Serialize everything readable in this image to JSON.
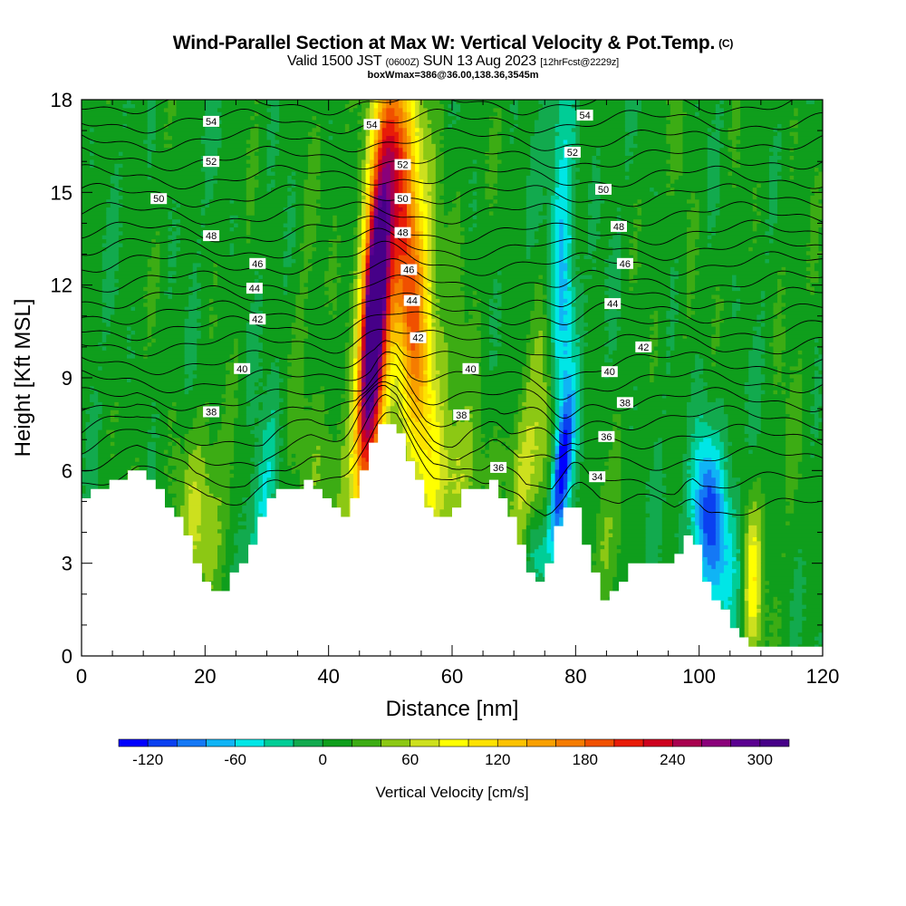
{
  "header": {
    "title": "Wind-Parallel Section at Max W: Vertical Velocity & Pot.Temp.",
    "copyright": "(C)",
    "valid_prefix": "Valid 1500 JST",
    "valid_utc": "(0600Z)",
    "valid_date": "SUN 13 Aug 2023",
    "forecast": "[12hrFcst@2229z]",
    "boxline": "boxWmax=386@36.00,138.36,3545m"
  },
  "chart_data": {
    "type": "heatmap",
    "xlabel": "Distance [nm]",
    "ylabel": "Height [Kft MSL]",
    "xlim": [
      0,
      120
    ],
    "ylim": [
      0,
      18
    ],
    "xticks": [
      0,
      20,
      40,
      60,
      80,
      100,
      120
    ],
    "yticks": [
      0,
      3,
      6,
      9,
      12,
      15,
      18
    ],
    "colorbar": {
      "title": "Vertical Velocity [cm/s]",
      "range": [
        -140,
        320
      ],
      "step": 20,
      "tick_values": [
        -120,
        -60,
        0,
        60,
        120,
        180,
        240,
        300
      ],
      "tick_labels": [
        "-120",
        "-60",
        "0",
        "60",
        "120",
        "180",
        "240",
        "300"
      ],
      "colors": [
        "#0000ff",
        "#0a40f0",
        "#1478f5",
        "#10b4f5",
        "#00e6e6",
        "#00cd96",
        "#12aa4e",
        "#0f9e1c",
        "#3cac14",
        "#8cc814",
        "#cde01e",
        "#ffff00",
        "#fde200",
        "#fbc200",
        "#f8a000",
        "#f57c00",
        "#f05000",
        "#e81c08",
        "#cd001e",
        "#a8004e",
        "#8a007a",
        "#5a0090",
        "#460088"
      ]
    },
    "terrain_profile": {
      "x": [
        0,
        5,
        9,
        12,
        14,
        16,
        17,
        18,
        19,
        20,
        21,
        23,
        24,
        26,
        27,
        28,
        29,
        30,
        31,
        32,
        33,
        34,
        36,
        37,
        38,
        40,
        42,
        43,
        44,
        45,
        46,
        47,
        48,
        49,
        50,
        51,
        52,
        53,
        54,
        55,
        56,
        57,
        58,
        59,
        60,
        61,
        62,
        63,
        64,
        65,
        66,
        67,
        68,
        69,
        70,
        71,
        72,
        73,
        74,
        75,
        76,
        77,
        78,
        79,
        80,
        81,
        82,
        83,
        84,
        85,
        86,
        87,
        88,
        89,
        90,
        92,
        94,
        96,
        98,
        99,
        100,
        101,
        102,
        103,
        104,
        105,
        106,
        107,
        108,
        109,
        110,
        112,
        114,
        116,
        118,
        120
      ],
      "height": [
        5.0,
        5.6,
        6.0,
        5.6,
        5.0,
        4.3,
        3.9,
        3.3,
        2.8,
        2.4,
        2.0,
        2.0,
        2.4,
        2.8,
        3.3,
        3.8,
        4.3,
        4.8,
        5.1,
        5.3,
        5.3,
        5.4,
        5.5,
        5.6,
        5.4,
        5.0,
        4.6,
        4.6,
        5.0,
        5.6,
        6.0,
        6.6,
        7.2,
        7.6,
        7.6,
        7.6,
        7.0,
        6.5,
        6.0,
        5.5,
        5.0,
        4.6,
        4.6,
        4.6,
        4.6,
        4.8,
        5.2,
        5.4,
        5.4,
        5.4,
        5.6,
        5.6,
        5.2,
        4.7,
        4.3,
        3.8,
        3.0,
        2.6,
        2.4,
        2.4,
        3.0,
        3.9,
        4.5,
        5.0,
        4.8,
        4.2,
        3.4,
        2.8,
        2.2,
        1.7,
        2.0,
        2.2,
        2.6,
        2.8,
        3.0,
        3.0,
        3.0,
        3.0,
        4.0,
        4.0,
        3.4,
        2.6,
        2.2,
        1.8,
        1.5,
        1.2,
        0.9,
        0.6,
        0.3,
        0.3,
        0.3,
        0.3,
        0.3,
        0.3,
        0.3,
        0.3
      ]
    },
    "vertical_velocity_features": [
      {
        "x": 47.3,
        "y": 11.0,
        "sx": 1.3,
        "sy": 3.2,
        "tilt": 0.32,
        "value": 300
      },
      {
        "x": 47.5,
        "y": 10.8,
        "sx": 2.4,
        "sy": 5.0,
        "tilt": 0.3,
        "value": 130
      },
      {
        "x": 53.3,
        "y": 12.2,
        "sx": 1.9,
        "sy": 4.2,
        "tilt": -0.3,
        "value": 125
      },
      {
        "x": 54.5,
        "y": 11.0,
        "sx": 3.2,
        "sy": 6.0,
        "tilt": -0.25,
        "value": 55
      },
      {
        "x": 45.0,
        "y": 9.5,
        "sx": 1.4,
        "sy": 2.2,
        "tilt": 0.4,
        "value": -45
      },
      {
        "x": 49.8,
        "y": 16.8,
        "sx": 1.8,
        "sy": 1.8,
        "tilt": 0,
        "value": 60
      },
      {
        "x": 77.5,
        "y": 5.8,
        "sx": 1.0,
        "sy": 1.7,
        "tilt": 0.6,
        "value": -110
      },
      {
        "x": 78.0,
        "y": 9.5,
        "sx": 1.4,
        "sy": 5.0,
        "tilt": 0.08,
        "value": -55
      },
      {
        "x": 77.5,
        "y": 14.0,
        "sx": 1.5,
        "sy": 4.0,
        "tilt": 0,
        "value": -40
      },
      {
        "x": 75.0,
        "y": 8.5,
        "sx": 1.6,
        "sy": 3.0,
        "tilt": 0,
        "value": 35
      },
      {
        "x": 101.0,
        "y": 4.8,
        "sx": 1.7,
        "sy": 1.7,
        "tilt": 0,
        "value": -85
      },
      {
        "x": 101.5,
        "y": 4.5,
        "sx": 3.0,
        "sy": 2.6,
        "tilt": 0,
        "value": -30
      },
      {
        "x": 104.0,
        "y": 3.0,
        "sx": 1.8,
        "sy": 1.6,
        "tilt": 0,
        "value": -40
      },
      {
        "x": 108.6,
        "y": 2.5,
        "sx": 1.1,
        "sy": 1.8,
        "tilt": 0,
        "value": 85
      },
      {
        "x": 29.0,
        "y": 4.5,
        "sx": 1.5,
        "sy": 2.2,
        "tilt": 0.5,
        "value": -50
      },
      {
        "x": 19.0,
        "y": 4.5,
        "sx": 3.5,
        "sy": 2.0,
        "tilt": 0,
        "value": 45
      },
      {
        "x": 40.0,
        "y": 6.0,
        "sx": 2.5,
        "sy": 1.6,
        "tilt": 0,
        "value": 30
      },
      {
        "x": 61.5,
        "y": 6.0,
        "sx": 3.0,
        "sy": 1.4,
        "tilt": 0,
        "value": 35
      },
      {
        "x": 71.5,
        "y": 5.8,
        "sx": 2.0,
        "sy": 2.0,
        "tilt": 0,
        "value": 55
      },
      {
        "x": 84.5,
        "y": 3.5,
        "sx": 1.8,
        "sy": 1.5,
        "tilt": 0,
        "value": 30
      },
      {
        "x": 73.5,
        "y": 3.4,
        "sx": 1.4,
        "sy": 1.0,
        "tilt": 0,
        "value": -45
      },
      {
        "x": 36.0,
        "y": 12.0,
        "sx": 1.6,
        "sy": 6.0,
        "tilt": 0,
        "value": 10
      },
      {
        "x": 60.5,
        "y": 12.0,
        "sx": 1.6,
        "sy": 5.0,
        "tilt": 0,
        "value": 10
      },
      {
        "x": 98.0,
        "y": 12.0,
        "sx": 1.4,
        "sy": 6.0,
        "tilt": 0,
        "value": 15
      },
      {
        "x": 114.0,
        "y": 12.0,
        "sx": 1.6,
        "sy": 6.0,
        "tilt": 0,
        "value": 10
      }
    ],
    "potential_temperature_contours": {
      "levels": [
        33,
        34,
        35,
        36,
        37,
        38,
        39,
        40,
        41,
        42,
        43,
        44,
        45,
        46,
        47,
        48,
        49,
        50,
        51,
        52,
        53,
        54,
        55
      ],
      "heights": [
        4.8,
        5.6,
        6.4,
        7.1,
        7.7,
        8.3,
        8.9,
        9.5,
        10.1,
        10.6,
        11.1,
        11.6,
        12.1,
        12.7,
        13.2,
        13.7,
        14.3,
        14.9,
        15.5,
        16.1,
        16.7,
        17.3,
        17.9
      ]
    },
    "contour_labels": [
      {
        "x": 21.0,
        "y": 17.3,
        "text": "54"
      },
      {
        "x": 21.0,
        "y": 16.0,
        "text": "52"
      },
      {
        "x": 12.5,
        "y": 14.8,
        "text": "50"
      },
      {
        "x": 21.0,
        "y": 13.6,
        "text": "48"
      },
      {
        "x": 28.5,
        "y": 12.7,
        "text": "46"
      },
      {
        "x": 28.0,
        "y": 11.9,
        "text": "44"
      },
      {
        "x": 28.5,
        "y": 10.9,
        "text": "42"
      },
      {
        "x": 26.0,
        "y": 9.3,
        "text": "40"
      },
      {
        "x": 21.0,
        "y": 7.9,
        "text": "38"
      },
      {
        "x": 47.0,
        "y": 17.2,
        "text": "54"
      },
      {
        "x": 52.0,
        "y": 15.9,
        "text": "52"
      },
      {
        "x": 52.0,
        "y": 14.8,
        "text": "50"
      },
      {
        "x": 52.0,
        "y": 13.7,
        "text": "48"
      },
      {
        "x": 53.0,
        "y": 12.5,
        "text": "46"
      },
      {
        "x": 53.5,
        "y": 11.5,
        "text": "44"
      },
      {
        "x": 54.5,
        "y": 10.3,
        "text": "42"
      },
      {
        "x": 63.0,
        "y": 9.3,
        "text": "40"
      },
      {
        "x": 61.5,
        "y": 7.8,
        "text": "38"
      },
      {
        "x": 67.5,
        "y": 6.1,
        "text": "36"
      },
      {
        "x": 81.5,
        "y": 17.5,
        "text": "54"
      },
      {
        "x": 79.5,
        "y": 16.3,
        "text": "52"
      },
      {
        "x": 84.5,
        "y": 15.1,
        "text": "50"
      },
      {
        "x": 87.0,
        "y": 13.9,
        "text": "48"
      },
      {
        "x": 88.0,
        "y": 12.7,
        "text": "46"
      },
      {
        "x": 86.0,
        "y": 11.4,
        "text": "44"
      },
      {
        "x": 91.0,
        "y": 10.0,
        "text": "42"
      },
      {
        "x": 85.5,
        "y": 9.2,
        "text": "40"
      },
      {
        "x": 88.0,
        "y": 8.2,
        "text": "38"
      },
      {
        "x": 85.0,
        "y": 7.1,
        "text": "36"
      },
      {
        "x": 83.5,
        "y": 5.8,
        "text": "34"
      }
    ]
  }
}
